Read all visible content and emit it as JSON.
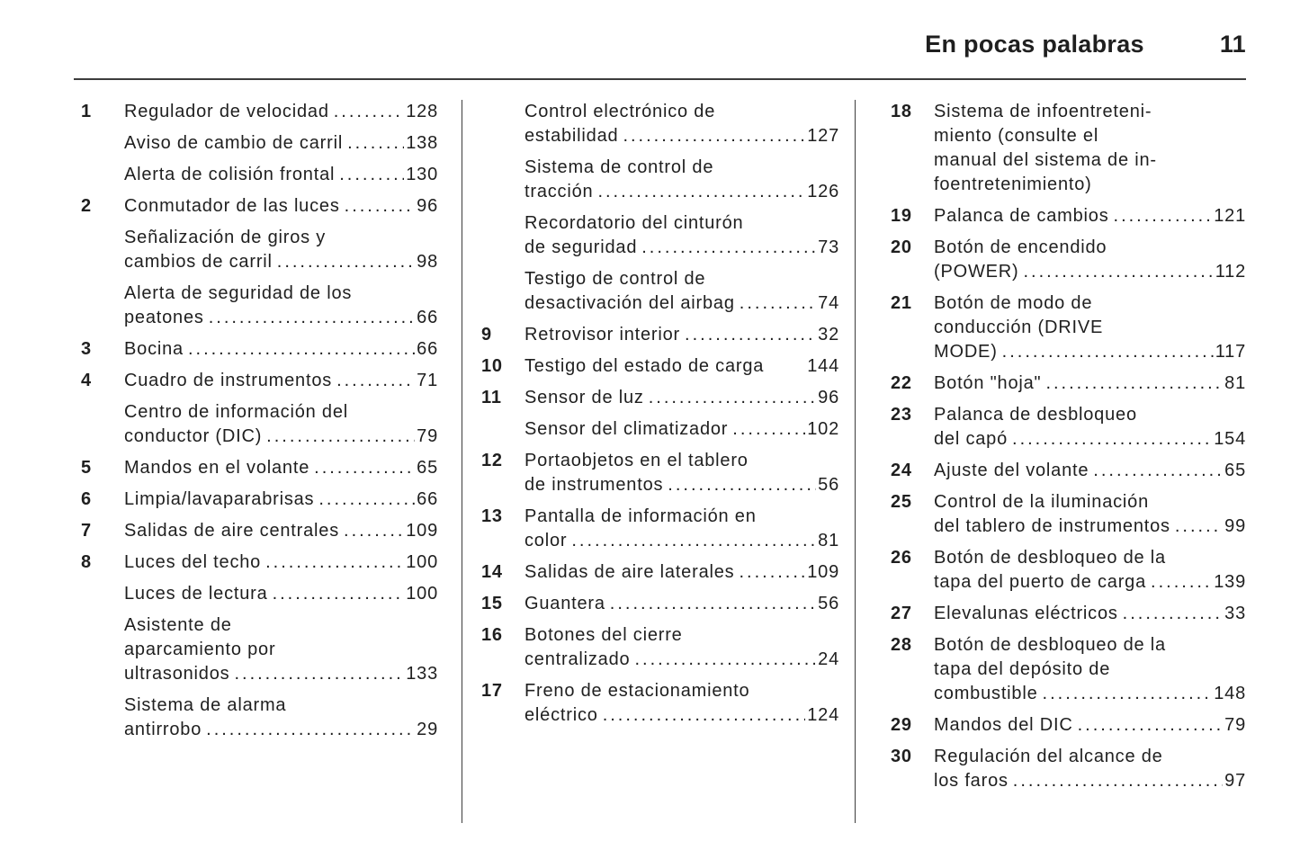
{
  "header": {
    "chapter_title": "En pocas palabras",
    "page_number": "11"
  },
  "colors": {
    "text": "#1f1f1f",
    "rule": "#3d3d3d",
    "background": "#ffffff"
  },
  "toc": {
    "columns": [
      {
        "entries": [
          {
            "num": "1",
            "lines": [
              "Regulador de velocidad"
            ],
            "page": "128"
          },
          {
            "num": "",
            "lines": [
              "Aviso de cambio de carril"
            ],
            "page": "138",
            "sub": true
          },
          {
            "num": "",
            "lines": [
              "Alerta de colisión frontal"
            ],
            "page": "130",
            "sub": true
          },
          {
            "num": "2",
            "lines": [
              "Conmutador de las luces"
            ],
            "page": "96"
          },
          {
            "num": "",
            "lines": [
              "Señalización de giros y",
              "cambios de carril"
            ],
            "page": "98",
            "sub": true
          },
          {
            "num": "",
            "lines": [
              "Alerta de seguridad de los",
              "peatones"
            ],
            "page": "66",
            "sub": true
          },
          {
            "num": "3",
            "lines": [
              "Bocina"
            ],
            "page": "66"
          },
          {
            "num": "4",
            "lines": [
              "Cuadro de instrumentos"
            ],
            "page": "71"
          },
          {
            "num": "",
            "lines": [
              "Centro de información del",
              "conductor (DIC)"
            ],
            "page": "79",
            "sub": true
          },
          {
            "num": "5",
            "lines": [
              "Mandos en el volante"
            ],
            "page": "65"
          },
          {
            "num": "6",
            "lines": [
              "Limpia/lavaparabrisas"
            ],
            "page": "66"
          },
          {
            "num": "7",
            "lines": [
              "Salidas de aire centrales"
            ],
            "page": "109"
          },
          {
            "num": "8",
            "lines": [
              "Luces del techo"
            ],
            "page": "100"
          },
          {
            "num": "",
            "lines": [
              "Luces de lectura"
            ],
            "page": "100",
            "sub": true
          },
          {
            "num": "",
            "lines": [
              "Asistente de",
              "aparcamiento por",
              "ultrasonidos"
            ],
            "page": "133",
            "sub": true
          },
          {
            "num": "",
            "lines": [
              "Sistema de alarma",
              "antirrobo"
            ],
            "page": "29",
            "sub": true
          }
        ]
      },
      {
        "entries": [
          {
            "num": "",
            "lines": [
              "Control electrónico de",
              "estabilidad"
            ],
            "page": "127",
            "sub": true
          },
          {
            "num": "",
            "lines": [
              "Sistema de control de",
              "tracción"
            ],
            "page": "126",
            "sub": true
          },
          {
            "num": "",
            "lines": [
              "Recordatorio del cinturón",
              "de seguridad"
            ],
            "page": "73",
            "sub": true
          },
          {
            "num": "",
            "lines": [
              "Testigo de control de",
              "desactivación del airbag"
            ],
            "page": "74",
            "sub": true
          },
          {
            "num": "9",
            "lines": [
              "Retrovisor interior"
            ],
            "page": "32"
          },
          {
            "num": "10",
            "lines": [
              "Testigo del estado de carga"
            ],
            "page": "144",
            "dots": false
          },
          {
            "num": "11",
            "lines": [
              "Sensor de luz"
            ],
            "page": "96"
          },
          {
            "num": "",
            "lines": [
              "Sensor del climatizador"
            ],
            "page": "102",
            "sub": true
          },
          {
            "num": "12",
            "lines": [
              "Portaobjetos en el tablero",
              "de instrumentos"
            ],
            "page": "56"
          },
          {
            "num": "13",
            "lines": [
              "Pantalla de información en",
              "color"
            ],
            "page": "81"
          },
          {
            "num": "14",
            "lines": [
              "Salidas de aire laterales"
            ],
            "page": "109"
          },
          {
            "num": "15",
            "lines": [
              "Guantera"
            ],
            "page": "56"
          },
          {
            "num": "16",
            "lines": [
              "Botones del cierre",
              "centralizado"
            ],
            "page": "24"
          },
          {
            "num": "17",
            "lines": [
              "Freno de estacionamiento",
              "eléctrico"
            ],
            "page": "124"
          }
        ]
      },
      {
        "entries": [
          {
            "num": "18",
            "lines": [
              "Sistema de infoentreteni-",
              "miento (consulte el",
              "manual del sistema de in-",
              "foentretenimiento)"
            ],
            "page": ""
          },
          {
            "num": "19",
            "lines": [
              "Palanca de cambios"
            ],
            "page": "121"
          },
          {
            "num": "20",
            "lines": [
              "Botón de encendido",
              "(POWER)"
            ],
            "page": "112"
          },
          {
            "num": "21",
            "lines": [
              "Botón de modo de",
              "conducción (DRIVE",
              "MODE)"
            ],
            "page": "117"
          },
          {
            "num": "22",
            "lines": [
              "Botón \"hoja\""
            ],
            "page": "81"
          },
          {
            "num": "23",
            "lines": [
              "Palanca de desbloqueo",
              "del capó"
            ],
            "page": "154"
          },
          {
            "num": "24",
            "lines": [
              "Ajuste del volante"
            ],
            "page": "65"
          },
          {
            "num": "25",
            "lines": [
              "Control de la iluminación",
              "del tablero de instrumentos"
            ],
            "page": "99"
          },
          {
            "num": "26",
            "lines": [
              "Botón de desbloqueo de la",
              "tapa del puerto de carga"
            ],
            "page": "139"
          },
          {
            "num": "27",
            "lines": [
              "Elevalunas eléctricos"
            ],
            "page": "33"
          },
          {
            "num": "28",
            "lines": [
              "Botón de desbloqueo de la",
              "tapa del depósito de",
              "combustible"
            ],
            "page": "148"
          },
          {
            "num": "29",
            "lines": [
              "Mandos del DIC"
            ],
            "page": "79"
          },
          {
            "num": "30",
            "lines": [
              "Regulación del alcance de",
              "los faros"
            ],
            "page": "97"
          }
        ]
      }
    ]
  }
}
